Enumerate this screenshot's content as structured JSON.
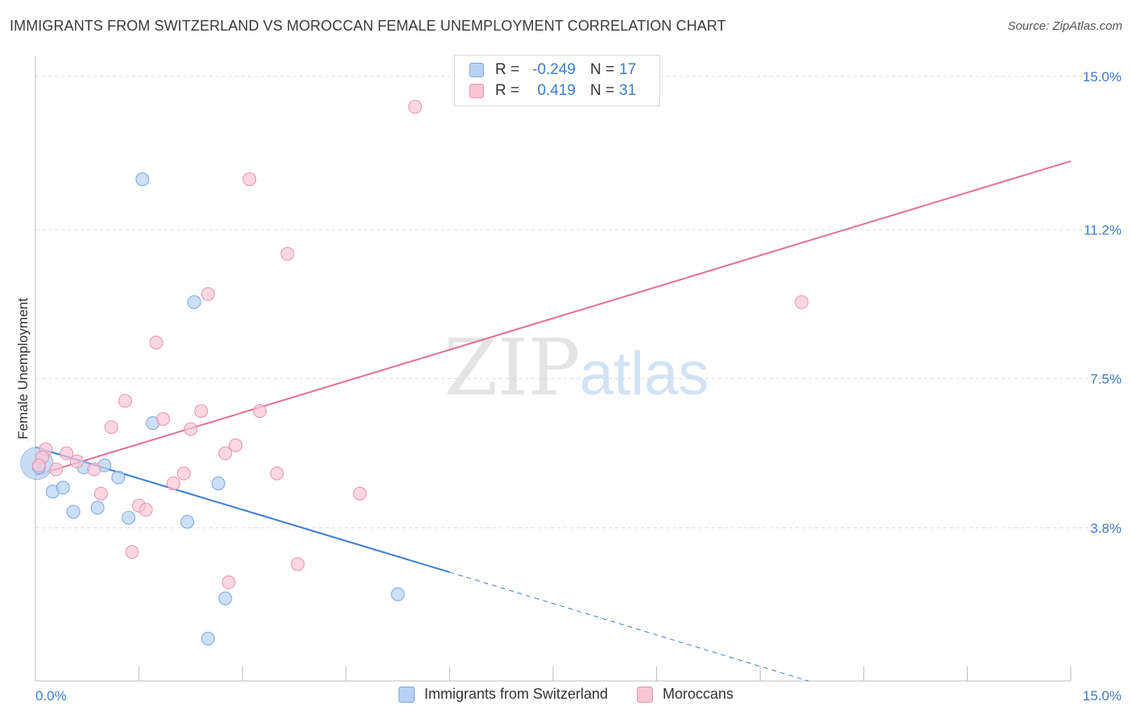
{
  "title": "IMMIGRANTS FROM SWITZERLAND VS MOROCCAN FEMALE UNEMPLOYMENT CORRELATION CHART",
  "source": "Source: ZipAtlas.com",
  "watermark": {
    "zip": "ZIP",
    "atlas": "atlas"
  },
  "legend_box": {
    "rows": [
      {
        "r_label": "R =",
        "r_value": "-0.249",
        "n_label": "N =",
        "n_value": "17"
      },
      {
        "r_label": "R =",
        "r_value": "0.419",
        "n_label": "N =",
        "n_value": "31"
      }
    ]
  },
  "bottom_legend": [
    "Immigrants from Switzerland",
    "Moroccans"
  ],
  "colors": {
    "blue_fill": "#b7d2f4",
    "blue_stroke": "#7aa7de",
    "blue_line": "#3d7cd1",
    "pink_fill": "#f8c6d4",
    "pink_stroke": "#eb92ae",
    "pink_line": "#e0709a",
    "tick_text": "#3d7cd1",
    "grid": "#dddddd"
  },
  "chart_data": {
    "type": "scatter",
    "title": "IMMIGRANTS FROM SWITZERLAND VS MOROCCAN FEMALE UNEMPLOYMENT CORRELATION CHART",
    "xlabel": "",
    "ylabel": "Female Unemployment",
    "xlim": [
      0,
      15
    ],
    "ylim": [
      0,
      15.5
    ],
    "x_tick_labels": [
      "0.0%",
      "15.0%"
    ],
    "y_ticks": [
      3.8,
      7.5,
      11.2,
      15.0
    ],
    "y_tick_labels": [
      "3.8%",
      "7.5%",
      "11.2%",
      "15.0%"
    ],
    "grid": true,
    "series": [
      {
        "name": "Immigrants from Switzerland",
        "r": -0.249,
        "n": 17,
        "points": [
          [
            0.05,
            5.3
          ],
          [
            0.25,
            4.7
          ],
          [
            0.4,
            4.8
          ],
          [
            0.55,
            4.2
          ],
          [
            0.7,
            5.3
          ],
          [
            0.9,
            4.3
          ],
          [
            1.0,
            5.35
          ],
          [
            1.2,
            5.05
          ],
          [
            1.35,
            4.05
          ],
          [
            1.55,
            12.45
          ],
          [
            1.7,
            6.4
          ],
          [
            2.2,
            3.95
          ],
          [
            2.3,
            9.4
          ],
          [
            2.65,
            4.9
          ],
          [
            2.5,
            1.05
          ],
          [
            2.75,
            2.05
          ],
          [
            5.25,
            2.15
          ]
        ],
        "trend": {
          "x0": 0,
          "y0": 5.8,
          "x1_solid": 6.0,
          "y1_solid": 2.7,
          "x1": 11.2,
          "y1": 0
        }
      },
      {
        "name": "Moroccans",
        "r": 0.419,
        "n": 31,
        "points": [
          [
            0.15,
            5.75
          ],
          [
            0.3,
            5.25
          ],
          [
            0.45,
            5.65
          ],
          [
            0.6,
            5.45
          ],
          [
            0.85,
            5.25
          ],
          [
            0.95,
            4.65
          ],
          [
            1.1,
            6.3
          ],
          [
            1.3,
            6.95
          ],
          [
            1.4,
            3.2
          ],
          [
            1.5,
            4.35
          ],
          [
            1.6,
            4.25
          ],
          [
            1.75,
            8.4
          ],
          [
            1.85,
            6.5
          ],
          [
            2.0,
            4.9
          ],
          [
            2.15,
            5.15
          ],
          [
            2.25,
            6.25
          ],
          [
            2.4,
            6.7
          ],
          [
            2.5,
            9.6
          ],
          [
            2.75,
            5.65
          ],
          [
            2.8,
            2.45
          ],
          [
            2.9,
            5.85
          ],
          [
            3.1,
            12.45
          ],
          [
            3.25,
            6.7
          ],
          [
            3.5,
            5.15
          ],
          [
            3.65,
            10.6
          ],
          [
            3.8,
            2.9
          ],
          [
            4.7,
            4.65
          ],
          [
            5.5,
            14.25
          ],
          [
            11.1,
            9.4
          ],
          [
            0.1,
            5.55
          ],
          [
            0.05,
            5.35
          ]
        ],
        "trend": {
          "x0": 0,
          "y0": 5.1,
          "x1": 15.0,
          "y1": 12.9
        }
      }
    ]
  }
}
